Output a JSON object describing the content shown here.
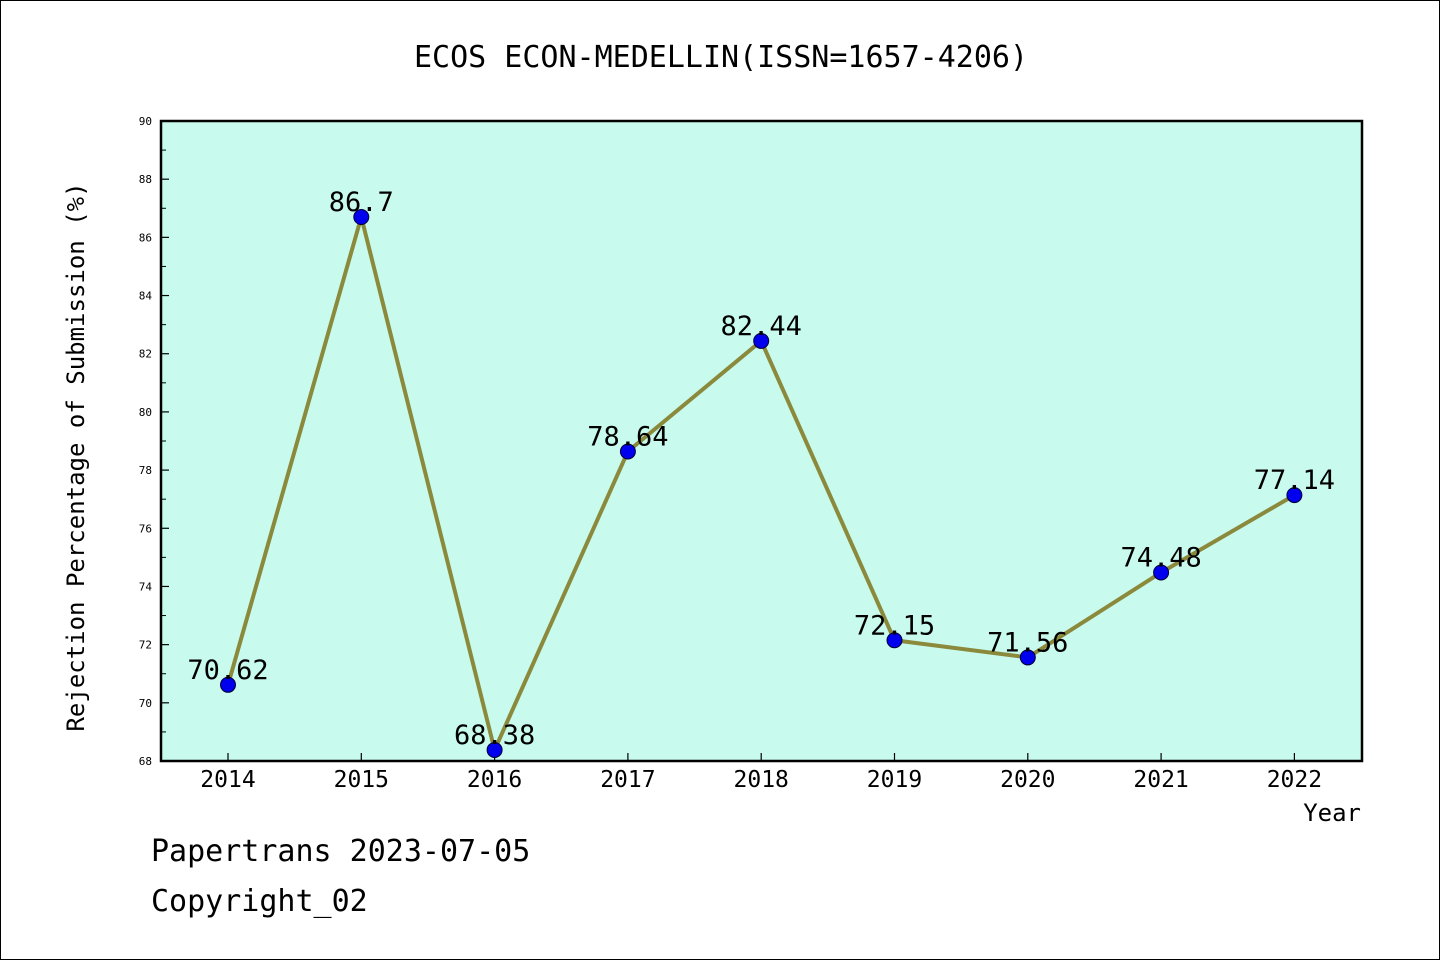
{
  "chart_data": {
    "type": "line",
    "title": "ECOS ECON-MEDELLIN(ISSN=1657-4206)",
    "xlabel": "Year",
    "ylabel": "Rejection Percentage of Submission (%)",
    "categories": [
      "2014",
      "2015",
      "2016",
      "2017",
      "2018",
      "2019",
      "2020",
      "2021",
      "2022"
    ],
    "values": [
      70.62,
      86.7,
      68.38,
      78.64,
      82.44,
      72.15,
      71.56,
      74.48,
      77.14
    ],
    "data_labels": [
      "70.62",
      "86.7",
      "68.38",
      "78.64",
      "82.44",
      "72.15",
      "71.56",
      "74.48",
      "77.14"
    ],
    "ylim": [
      68,
      90
    ],
    "yticks": [
      "68",
      "70",
      "72",
      "74",
      "76",
      "78",
      "80",
      "82",
      "84",
      "86",
      "88",
      "90"
    ],
    "grid": false,
    "colors": {
      "plot_background": "#c8fbee",
      "line": "#8b8a3c",
      "marker": "#0000ee"
    }
  },
  "footer": {
    "line1": "Papertrans 2023-07-05",
    "line2": "Copyright_02"
  }
}
